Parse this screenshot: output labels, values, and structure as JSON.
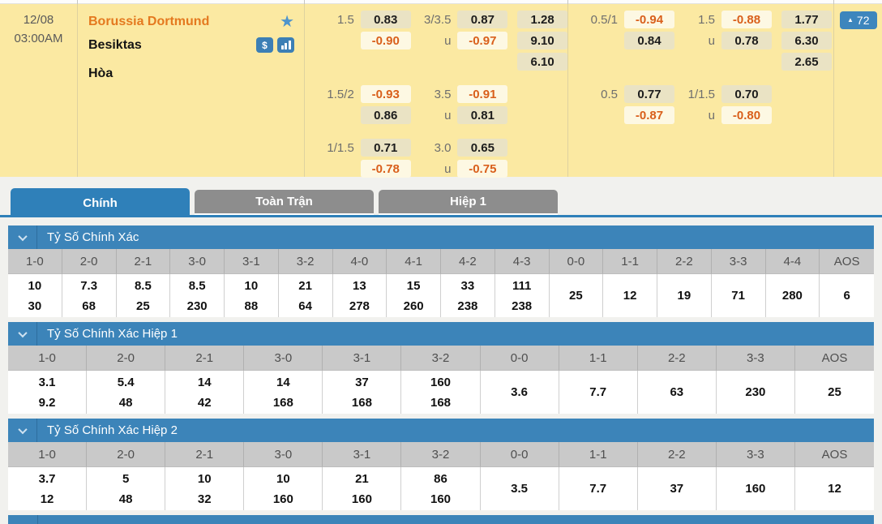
{
  "icons": {
    "star": "★",
    "money": "$",
    "fav_arrow": "▲"
  },
  "match": {
    "date": "12/08",
    "time": "03:00AM",
    "home": "Borussia Dortmund",
    "away": "Besiktas",
    "draw_label": "Hòa",
    "fav_count": "72"
  },
  "odds_panel": {
    "left_blocks": [
      [
        [
          "1.5",
          "0.83",
          "3/3.5",
          "0.87",
          "1.28"
        ],
        [
          "",
          "-0.90",
          "u",
          "-0.97",
          "9.10"
        ],
        [
          "",
          "",
          "",
          "",
          "6.10"
        ]
      ],
      [
        [
          "1.5/2",
          "-0.93",
          "3.5",
          "-0.91",
          ""
        ],
        [
          "",
          "0.86",
          "u",
          "0.81",
          ""
        ]
      ],
      [
        [
          "1/1.5",
          "0.71",
          "3.0",
          "0.65",
          ""
        ],
        [
          "",
          "-0.78",
          "u",
          "-0.75",
          ""
        ]
      ]
    ],
    "right_blocks": [
      [
        [
          "0.5/1",
          "-0.94",
          "1.5",
          "-0.88",
          "1.77"
        ],
        [
          "",
          "0.84",
          "u",
          "0.78",
          "6.30"
        ],
        [
          "",
          "",
          "",
          "",
          "2.65"
        ]
      ],
      [
        [
          "0.5",
          "0.77",
          "1/1.5",
          "0.70",
          ""
        ],
        [
          "",
          "-0.87",
          "u",
          "-0.80",
          ""
        ]
      ]
    ]
  },
  "tabs": [
    {
      "label": "Chính",
      "active": true
    },
    {
      "label": "Toàn Trận",
      "active": false
    },
    {
      "label": "Hiệp 1",
      "active": false
    }
  ],
  "sections": [
    {
      "title": "Tỷ Số Chính Xác",
      "cells": [
        {
          "h": "1-0",
          "v": [
            "10",
            "30"
          ]
        },
        {
          "h": "2-0",
          "v": [
            "7.3",
            "68"
          ]
        },
        {
          "h": "2-1",
          "v": [
            "8.5",
            "25"
          ]
        },
        {
          "h": "3-0",
          "v": [
            "8.5",
            "230"
          ]
        },
        {
          "h": "3-1",
          "v": [
            "10",
            "88"
          ]
        },
        {
          "h": "3-2",
          "v": [
            "21",
            "64"
          ]
        },
        {
          "h": "4-0",
          "v": [
            "13",
            "278"
          ]
        },
        {
          "h": "4-1",
          "v": [
            "15",
            "260"
          ]
        },
        {
          "h": "4-2",
          "v": [
            "33",
            "238"
          ]
        },
        {
          "h": "4-3",
          "v": [
            "111",
            "238"
          ]
        },
        {
          "h": "0-0",
          "v": [
            "25"
          ]
        },
        {
          "h": "1-1",
          "v": [
            "12"
          ]
        },
        {
          "h": "2-2",
          "v": [
            "19"
          ]
        },
        {
          "h": "3-3",
          "v": [
            "71"
          ]
        },
        {
          "h": "4-4",
          "v": [
            "280"
          ]
        },
        {
          "h": "AOS",
          "v": [
            "6"
          ]
        }
      ]
    },
    {
      "title": "Tỷ Số Chính Xác Hiệp 1",
      "cells": [
        {
          "h": "1-0",
          "v": [
            "3.1",
            "9.2"
          ]
        },
        {
          "h": "2-0",
          "v": [
            "5.4",
            "48"
          ]
        },
        {
          "h": "2-1",
          "v": [
            "14",
            "42"
          ]
        },
        {
          "h": "3-0",
          "v": [
            "14",
            "168"
          ]
        },
        {
          "h": "3-1",
          "v": [
            "37",
            "168"
          ]
        },
        {
          "h": "3-2",
          "v": [
            "160",
            "168"
          ]
        },
        {
          "h": "0-0",
          "v": [
            "3.6"
          ]
        },
        {
          "h": "1-1",
          "v": [
            "7.7"
          ]
        },
        {
          "h": "2-2",
          "v": [
            "63"
          ]
        },
        {
          "h": "3-3",
          "v": [
            "230"
          ]
        },
        {
          "h": "AOS",
          "v": [
            "25"
          ]
        }
      ]
    },
    {
      "title": "Tỷ Số Chính Xác Hiệp 2",
      "cells": [
        {
          "h": "1-0",
          "v": [
            "3.7",
            "12"
          ]
        },
        {
          "h": "2-0",
          "v": [
            "5",
            "48"
          ]
        },
        {
          "h": "2-1",
          "v": [
            "10",
            "32"
          ]
        },
        {
          "h": "3-0",
          "v": [
            "10",
            "160"
          ]
        },
        {
          "h": "3-1",
          "v": [
            "21",
            "160"
          ]
        },
        {
          "h": "3-2",
          "v": [
            "86",
            "160"
          ]
        },
        {
          "h": "0-0",
          "v": [
            "3.5"
          ]
        },
        {
          "h": "1-1",
          "v": [
            "7.7"
          ]
        },
        {
          "h": "2-2",
          "v": [
            "37"
          ]
        },
        {
          "h": "3-3",
          "v": [
            "160"
          ]
        },
        {
          "h": "AOS",
          "v": [
            "12"
          ]
        }
      ]
    }
  ]
}
